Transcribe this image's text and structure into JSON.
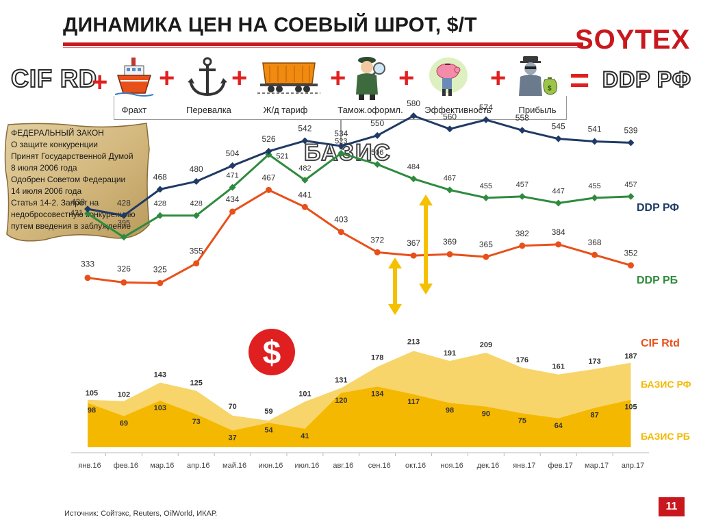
{
  "header": {
    "title": "ДИНАМИКА ЦЕН НА СОЕВЫЙ ШРОТ, $/Т",
    "logo": "SOYTEX"
  },
  "formula": {
    "left_term": "CIF RD",
    "right_term": "DDP РФ",
    "plus": "+",
    "equals": "=",
    "components": [
      {
        "label": "Фрахт",
        "icon": "ship-icon"
      },
      {
        "label": "Перевалка",
        "icon": "anchor-icon"
      },
      {
        "label": "Ж/д тариф",
        "icon": "railcar-icon"
      },
      {
        "label": "Тамож.оформл.",
        "icon": "customs-officer-icon"
      },
      {
        "label": "Эффективность",
        "icon": "piggy-bank-icon"
      },
      {
        "label": "Прибыль",
        "icon": "money-bag-icon"
      }
    ],
    "basis_label": "БАЗИС"
  },
  "law_note": {
    "lines": [
      "ФЕДЕРАЛЬНЫЙ ЗАКОН",
      "О защите конкуренции",
      "Принят Государственной Думой",
      "8 июля 2006 года",
      "Одобрен Советом Федерации",
      "14 июля 2006 года",
      "Статья 14-2. Запрет на",
      "недобросовестную конкуренцию",
      "путем введения в заблуждение"
    ]
  },
  "chart_data": {
    "type": "line",
    "title": "",
    "categories": [
      "янв.16",
      "фев.16",
      "мар.16",
      "апр.16",
      "май.16",
      "июн.16",
      "июл.16",
      "авг.16",
      "сен.16",
      "окт.16",
      "ноя.16",
      "дек.16",
      "янв.17",
      "фев.17",
      "мар.17",
      "апр.17"
    ],
    "series": [
      {
        "name": "DDP РФ",
        "kind": "line",
        "color": "#1f3a64",
        "values": [
          438,
          428,
          468,
          480,
          504,
          526,
          542,
          534,
          550,
          580,
          560,
          574,
          558,
          545,
          541,
          539
        ]
      },
      {
        "name": "DDP РБ",
        "kind": "line",
        "color": "#2e8b3e",
        "values": [
          431,
          395,
          428,
          428,
          471,
          521,
          482,
          523,
          506,
          484,
          467,
          455,
          457,
          447,
          455,
          457
        ]
      },
      {
        "name": "CIF Rtd",
        "kind": "line",
        "color": "#e8501a",
        "values": [
          333,
          326,
          325,
          355,
          434,
          467,
          441,
          403,
          372,
          367,
          369,
          365,
          382,
          384,
          368,
          352
        ]
      },
      {
        "name": "БАЗИС РФ",
        "kind": "area",
        "color": "#f8d56a",
        "values": [
          105,
          102,
          143,
          125,
          70,
          59,
          101,
          131,
          178,
          213,
          191,
          209,
          176,
          161,
          173,
          187
        ]
      },
      {
        "name": "БАЗИС РБ",
        "kind": "area",
        "color": "#f5b800",
        "values": [
          98,
          69,
          103,
          73,
          37,
          54,
          41,
          120,
          134,
          117,
          98,
          90,
          75,
          64,
          87,
          105
        ]
      }
    ],
    "legend_labels": [
      "DDP РФ",
      "DDP РБ",
      "CIF Rtd",
      "БАЗИС РФ",
      "БАЗИС РБ"
    ],
    "grid": false
  },
  "footer": {
    "source": "Источник:  Сойтэкс, Reuters, OilWorld, ИКАР.",
    "page_number": "11"
  },
  "colors": {
    "accent_red": "#c8181e",
    "dollar_red": "#e02020",
    "arrow_yellow": "#f5c000"
  }
}
